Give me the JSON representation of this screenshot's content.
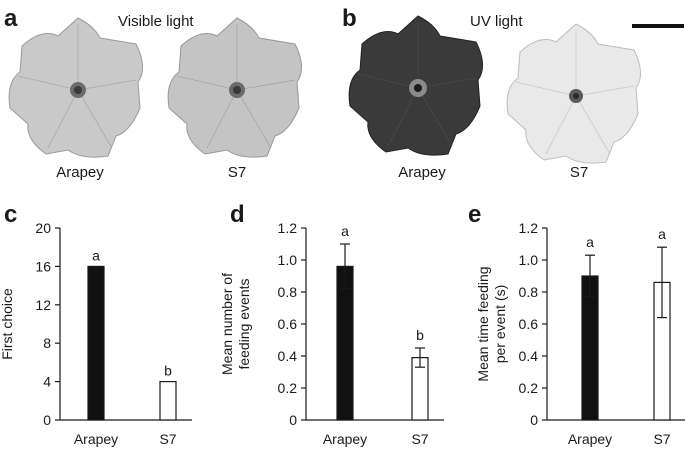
{
  "panels": {
    "a": {
      "letter": "a",
      "title": "Visible light",
      "flower_labels": [
        "Arapey",
        "S7"
      ]
    },
    "b": {
      "letter": "b",
      "title": "UV light",
      "flower_labels": [
        "Arapey",
        "S7"
      ]
    }
  },
  "colors": {
    "arapey_bar": "#111111",
    "s7_bar": "#ffffff",
    "axis": "#1a1a1a",
    "flower_visible": "#c9c9c9",
    "flower_uv_arapey": "#3a3a3a",
    "flower_uv_s7": "#e9e9e9"
  },
  "chart_data": [
    {
      "panel": "c",
      "type": "bar",
      "categories": [
        "Arapey",
        "S7"
      ],
      "values": [
        16,
        4
      ],
      "errors": [
        null,
        null
      ],
      "significance": [
        "a",
        "b"
      ],
      "ylabel": [
        "First choice"
      ],
      "ylim": [
        0,
        20
      ],
      "yticks": [
        "0",
        "4",
        "8",
        "12",
        "16",
        "20"
      ],
      "ytick_values": [
        0,
        4,
        8,
        12,
        16,
        20
      ]
    },
    {
      "panel": "d",
      "type": "bar",
      "categories": [
        "Arapey",
        "S7"
      ],
      "values": [
        0.96,
        0.39
      ],
      "errors": [
        0.14,
        0.06
      ],
      "significance": [
        "a",
        "b"
      ],
      "ylabel": [
        "Mean number of",
        "feeding events"
      ],
      "ylim": [
        0,
        1.2
      ],
      "yticks": [
        "0",
        "0.2",
        "0.4",
        "0.6",
        "0.8",
        "1.0",
        "1.2"
      ],
      "ytick_values": [
        0,
        0.2,
        0.4,
        0.6,
        0.8,
        1.0,
        1.2
      ]
    },
    {
      "panel": "e",
      "type": "bar",
      "categories": [
        "Arapey",
        "S7"
      ],
      "values": [
        0.9,
        0.86
      ],
      "errors": [
        0.13,
        0.22
      ],
      "significance": [
        "a",
        "a"
      ],
      "ylabel": [
        "Mean time feeding",
        "per event (s)"
      ],
      "ylim": [
        0,
        1.2
      ],
      "yticks": [
        "0",
        "0.2",
        "0.4",
        "0.6",
        "0.8",
        "1.0",
        "1.2"
      ],
      "ytick_values": [
        0,
        0.2,
        0.4,
        0.6,
        0.8,
        1.0,
        1.2
      ]
    }
  ]
}
